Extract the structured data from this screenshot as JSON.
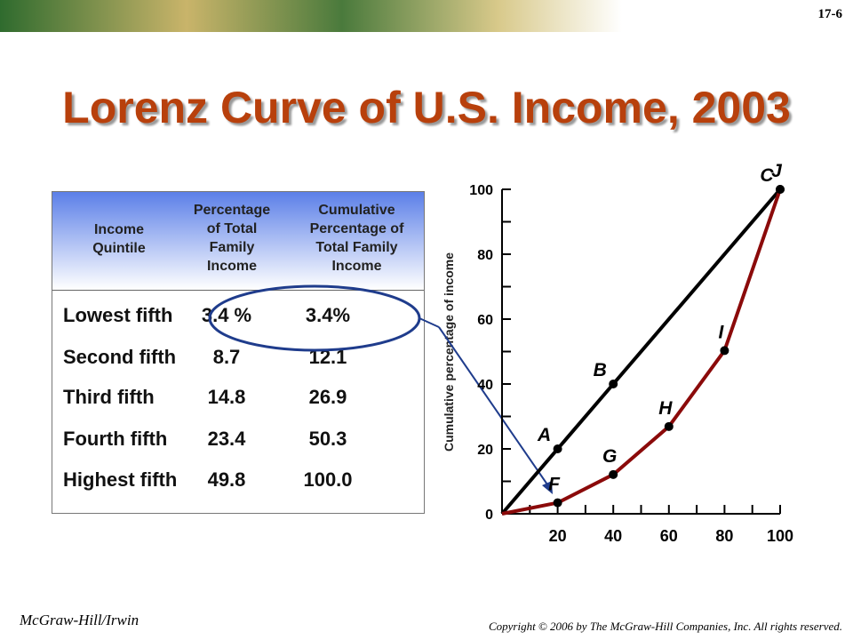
{
  "page": {
    "slide_number": "17-6",
    "title": "Lorenz Curve of U.S. Income, 2003",
    "footer_left": "McGraw-Hill/Irwin",
    "footer_right": "Copyright © 2006 by The McGraw-Hill Companies, Inc. All rights reserved."
  },
  "table": {
    "header": [
      "Income Quintile",
      "Percentage of Total Family Income",
      "Cumulative Percentage of Total Family Income"
    ],
    "rows": [
      [
        "Lowest fifth",
        "3.4 %",
        "3.4%"
      ],
      [
        "Second fifth",
        "8.7",
        "12.1"
      ],
      [
        "Third fifth",
        "14.8",
        "26.9"
      ],
      [
        "Fourth fifth",
        "23.4",
        "50.3"
      ],
      [
        "Highest fifth",
        "49.8",
        "100.0"
      ]
    ]
  },
  "chart_data": {
    "type": "line",
    "y_label": "Cumulative percentage of income",
    "xlim": [
      0,
      100
    ],
    "ylim": [
      0,
      100
    ],
    "xticks": [
      20,
      40,
      60,
      80,
      100
    ],
    "yticks": [
      0,
      20,
      40,
      60,
      80,
      100
    ],
    "xminorticks": [
      10,
      30,
      50,
      70,
      90
    ],
    "yminorticks": [
      10,
      30,
      50,
      70,
      90
    ],
    "series": [
      {
        "color": "#000000",
        "x": [
          0,
          20,
          40,
          100
        ],
        "values": [
          0,
          20,
          40,
          100
        ],
        "point_labels": [
          null,
          "A",
          "B",
          "C"
        ]
      },
      {
        "color": "#8b0a0a",
        "x": [
          0,
          20,
          40,
          60,
          80,
          100
        ],
        "values": [
          0,
          3.4,
          12.1,
          26.9,
          50.3,
          100
        ],
        "point_labels": [
          null,
          "F",
          "G",
          "H",
          "I",
          "J"
        ]
      }
    ]
  }
}
